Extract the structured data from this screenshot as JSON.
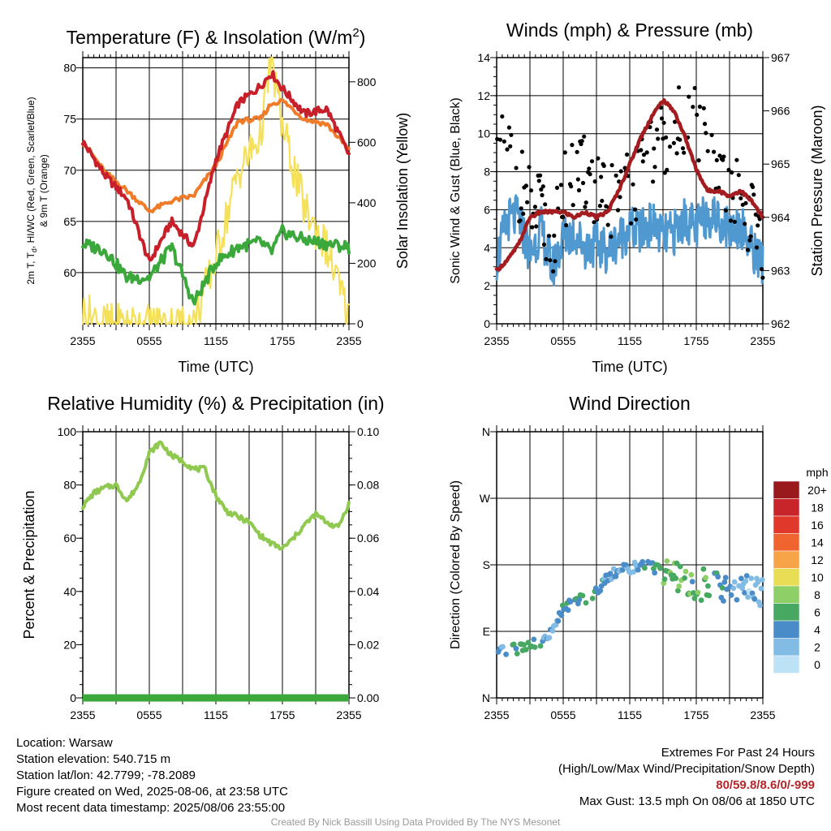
{
  "panels": {
    "temperature": {
      "title_main": "Temperature (F) & Insolation (W/m",
      "title_sup": "2",
      "title_end": ")",
      "ylabel_left_line1": "2m T, T",
      "ylabel_left_sub": "d",
      "ylabel_left_line1_end": ", HI/WC (Red, Green, Scarlet/Blue)",
      "ylabel_left_line2": "& 9m T (Orange)",
      "ylabel_right": "Solar Insolation (Yellow)",
      "xlabel": "Time (UTC)",
      "xticks": [
        "2355",
        "0555",
        "1155",
        "1755",
        "2355"
      ],
      "yticks_left": [
        "60",
        "65",
        "70",
        "75",
        "80"
      ],
      "yticks_right": [
        "0",
        "200",
        "400",
        "600",
        "800"
      ]
    },
    "winds": {
      "title": "Winds (mph) & Pressure (mb)",
      "ylabel_left": "Sonic Wind & Gust (Blue, Black)",
      "ylabel_right": "Station Pressure (Maroon)",
      "xlabel": "Time (UTC)",
      "xticks": [
        "2355",
        "0555",
        "1155",
        "1755",
        "2355"
      ],
      "yticks_left": [
        "0",
        "2",
        "4",
        "6",
        "8",
        "10",
        "12",
        "14"
      ],
      "yticks_right": [
        "962",
        "963",
        "964",
        "965",
        "966",
        "967"
      ]
    },
    "humidity": {
      "title": "Relative Humidity (%) & Precipitation (in)",
      "ylabel_left": "Percent & Precipitation",
      "xticks": [
        "2355",
        "0555",
        "1155",
        "1755",
        "2355"
      ],
      "yticks_left": [
        "0",
        "20",
        "40",
        "60",
        "80",
        "100"
      ],
      "yticks_right": [
        "0.00",
        "0.02",
        "0.04",
        "0.06",
        "0.08",
        "0.10"
      ]
    },
    "direction": {
      "title": "Wind Direction",
      "ylabel_left": "Direction (Colored By Speed)",
      "xticks": [
        "2355",
        "0555",
        "1155",
        "1755",
        "2355"
      ],
      "yticks_left": [
        "N",
        "E",
        "S",
        "W",
        "N"
      ],
      "legend_title": "mph",
      "legend_labels": [
        "20+",
        "18",
        "16",
        "14",
        "12",
        "10",
        "8",
        "6",
        "4",
        "2",
        "0"
      ],
      "legend_colors": [
        "#99191c",
        "#c8252a",
        "#e0392c",
        "#f0642f",
        "#f7a348",
        "#e8dd55",
        "#8fcf67",
        "#47a862",
        "#4a8cc8",
        "#82bbe3",
        "#bde2f5"
      ]
    }
  },
  "info": {
    "location": "Location: Warsaw",
    "elevation": "Station elevation: 540.715 m",
    "latlon": "Station lat/lon: 42.7799; -78.2089",
    "created": "Figure created on Wed, 2025-08-06, at 23:58 UTC",
    "recent": "Most recent data timestamp: 2025/08/06 23:55:00",
    "extremes_title": "Extremes For Past 24 Hours",
    "extremes_sub": "(High/Low/Max Wind/Precipitation/Snow Depth)",
    "extremes_values": "80/59.8/8.6/0/-999",
    "max_gust": "Max Gust: 13.5 mph On 08/06 at 1850 UTC",
    "credit": "Created By Nick Bassill Using Data Provided By The NYS Mesonet"
  },
  "colors": {
    "temp_red": "#c8202a",
    "temp_orange": "#f07c2a",
    "dewpoint_green": "#3aa83a",
    "solar_yellow": "#f5e05a",
    "wind_blue": "#4f98d0",
    "gust_black": "#000000",
    "pressure_maroon": "#a31c20",
    "rh_green": "#8fc94f",
    "precip_green": "#3aa83a"
  },
  "chart_data": [
    {
      "type": "line",
      "x_hours": [
        0,
        2,
        4,
        6,
        8,
        10,
        12,
        14,
        16,
        17,
        18,
        20,
        22,
        24
      ],
      "series": [
        {
          "name": "2m T",
          "color": "temp_red",
          "axis": "left",
          "values": [
            72.8,
            69.5,
            67.2,
            61.0,
            65.0,
            62.5,
            71.0,
            76.5,
            78.2,
            79.5,
            78.0,
            75.5,
            76.0,
            71.5
          ]
        },
        {
          "name": "9m T",
          "color": "temp_orange",
          "axis": "left",
          "values": [
            72.8,
            69.8,
            68.0,
            66.0,
            67.0,
            67.5,
            70.5,
            74.8,
            75.0,
            76.5,
            76.8,
            75.0,
            74.5,
            72.0
          ]
        },
        {
          "name": "Td",
          "color": "dewpoint_green",
          "axis": "left",
          "values": [
            62.8,
            62.2,
            59.5,
            59.5,
            62.5,
            57.0,
            61.0,
            62.5,
            63.0,
            62.0,
            64.0,
            63.2,
            62.8,
            62.5
          ]
        },
        {
          "name": "Solar",
          "color": "solar_yellow",
          "axis": "right",
          "values": [
            40,
            0,
            0,
            0,
            0,
            0,
            220,
            500,
            620,
            880,
            650,
            380,
            250,
            20
          ]
        }
      ],
      "ylim_left": [
        55,
        81
      ],
      "ylim_right": [
        0,
        880
      ]
    },
    {
      "type": "line",
      "x_hours": [
        0,
        1,
        2,
        3,
        4,
        5,
        6,
        7,
        8,
        9,
        10,
        11,
        12,
        13,
        14,
        15,
        16,
        17,
        18,
        19,
        20,
        21,
        22,
        23,
        24
      ],
      "series": [
        {
          "name": "Sonic Wind",
          "color": "wind_blue",
          "axis": "left",
          "values": [
            3.4,
            5.5,
            5.6,
            3.6,
            5.0,
            2.8,
            4.5,
            4.8,
            4.0,
            4.2,
            3.8,
            4.5,
            5.0,
            4.8,
            5.3,
            4.5,
            4.8,
            5.5,
            5.0,
            5.8,
            5.5,
            5.0,
            5.2,
            4.0,
            3.2
          ]
        },
        {
          "name": "Gust",
          "color": "gust_black",
          "axis": "left",
          "values": [
            8.5,
            9.2,
            7.5,
            6.2,
            5.8,
            4.0,
            7.2,
            7.5,
            7.8,
            7.0,
            6.0,
            7.5,
            7.0,
            7.8,
            8.8,
            9.5,
            10.0,
            11.0,
            10.5,
            9.0,
            8.0,
            7.0,
            6.5,
            5.5,
            4.5
          ]
        },
        {
          "name": "Station Pressure",
          "color": "pressure_maroon",
          "axis": "right",
          "values": [
            963.0,
            963.2,
            963.5,
            964.0,
            964.1,
            964.1,
            964.1,
            964.0,
            964.1,
            964.0,
            964.1,
            964.5,
            965.0,
            965.5,
            965.9,
            966.2,
            966.0,
            965.5,
            964.9,
            964.5,
            964.5,
            964.4,
            964.5,
            964.3,
            964.0
          ]
        }
      ],
      "ylim_left": [
        0,
        14
      ],
      "ylim_right": [
        962,
        967
      ]
    },
    {
      "type": "line",
      "x_hours": [
        0,
        1,
        2,
        3,
        4,
        5,
        6,
        7,
        8,
        9,
        10,
        11,
        12,
        13,
        14,
        15,
        16,
        17,
        18,
        19,
        20,
        21,
        22,
        23,
        24
      ],
      "series": [
        {
          "name": "Relative Humidity",
          "color": "rh_green",
          "axis": "left",
          "values": [
            72,
            77,
            79,
            80,
            74,
            80,
            92,
            96,
            91,
            89,
            86,
            86,
            76,
            70,
            68,
            66,
            61,
            58,
            56,
            60,
            65,
            69,
            66,
            64,
            73
          ]
        },
        {
          "name": "Precipitation",
          "color": "precip_green",
          "axis": "right",
          "values": [
            0,
            0,
            0,
            0,
            0,
            0,
            0,
            0,
            0,
            0,
            0,
            0,
            0,
            0,
            0,
            0,
            0,
            0,
            0,
            0,
            0,
            0,
            0,
            0,
            0
          ]
        }
      ],
      "ylim_left": [
        0,
        100
      ],
      "ylim_right": [
        0,
        0.1
      ]
    },
    {
      "type": "scatter",
      "x_hours": [
        0,
        1,
        2,
        3,
        4,
        5,
        6,
        7,
        8,
        9,
        10,
        11,
        12,
        13,
        14,
        15,
        16,
        17,
        18,
        19,
        20,
        21,
        22,
        23,
        24
      ],
      "directions_deg": [
        60,
        64,
        67,
        75,
        72,
        90,
        120,
        132,
        135,
        145,
        165,
        172,
        175,
        178,
        178,
        170,
        165,
        155,
        145,
        160,
        150,
        148,
        145,
        148,
        140
      ],
      "speeds_mph": [
        3,
        4,
        5,
        5,
        4,
        2,
        4,
        5,
        6,
        5,
        3,
        4,
        3,
        4,
        5,
        7,
        6,
        7,
        6,
        7,
        5,
        4,
        3,
        2,
        1
      ],
      "ylim": [
        0,
        360
      ]
    }
  ]
}
